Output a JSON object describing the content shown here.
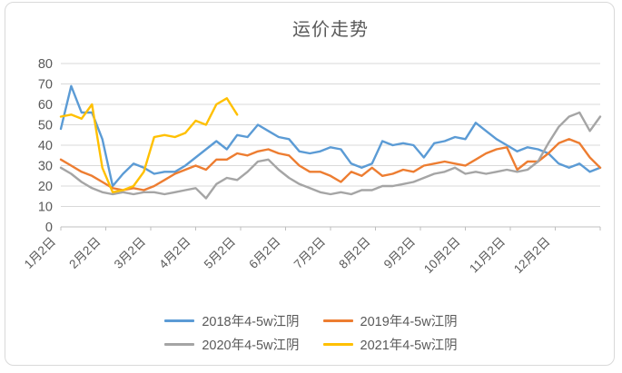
{
  "chart_title": "运价走势",
  "chart_data": {
    "type": "line",
    "title": "运价走势",
    "x_axis": {
      "tick_labels": [
        "1月2日",
        "2月2日",
        "3月2日",
        "4月2日",
        "5月2日",
        "6月2日",
        "7月2日",
        "8月2日",
        "9月2日",
        "10月2日",
        "11月2日",
        "12月2日"
      ],
      "label_rotation_deg": 45,
      "points_per_year": 53
    },
    "y_axis": {
      "min": 0,
      "max": 80,
      "step": 10,
      "tick_labels": [
        "0",
        "10",
        "20",
        "30",
        "40",
        "50",
        "60",
        "70",
        "80"
      ]
    },
    "grid": true,
    "legend_position": "bottom",
    "colors": {
      "grid": "#d9d9d9",
      "axis": "#bfbfbf",
      "text": "#595959"
    },
    "series": [
      {
        "name": "2018年4-5w江阴",
        "color": "#5b9bd5",
        "values": [
          48,
          69,
          56,
          56,
          43,
          20,
          26,
          31,
          29,
          26,
          27,
          27,
          30,
          34,
          38,
          42,
          38,
          45,
          44,
          50,
          47,
          44,
          43,
          37,
          36,
          37,
          39,
          38,
          31,
          29,
          31,
          42,
          40,
          41,
          40,
          34,
          41,
          42,
          44,
          43,
          51,
          47,
          43,
          40,
          37,
          39,
          38,
          36,
          31,
          29,
          31,
          27,
          29
        ]
      },
      {
        "name": "2019年4-5w江阴",
        "color": "#ed7d31",
        "values": [
          33,
          30,
          27,
          25,
          22,
          19,
          18,
          19,
          18,
          20,
          23,
          26,
          28,
          30,
          28,
          33,
          33,
          36,
          35,
          37,
          38,
          36,
          35,
          30,
          27,
          27,
          25,
          22,
          27,
          25,
          29,
          25,
          26,
          28,
          27,
          30,
          31,
          32,
          31,
          30,
          33,
          36,
          38,
          39,
          28,
          32,
          32,
          36,
          41,
          43,
          41,
          34,
          29
        ]
      },
      {
        "name": "2020年4-5w江阴",
        "color": "#a5a5a5",
        "values": [
          29,
          26,
          22,
          19,
          17,
          16,
          17,
          16,
          17,
          17,
          16,
          17,
          18,
          19,
          14,
          21,
          24,
          23,
          27,
          32,
          33,
          28,
          24,
          21,
          19,
          17,
          16,
          17,
          16,
          18,
          18,
          20,
          20,
          21,
          22,
          24,
          26,
          27,
          29,
          26,
          27,
          26,
          27,
          28,
          27,
          28,
          32,
          41,
          49,
          54,
          56,
          47,
          54
        ]
      },
      {
        "name": "2021年4-5w江阴",
        "color": "#ffc000",
        "values": [
          54,
          55,
          53,
          60,
          29,
          17,
          18,
          20,
          27,
          44,
          45,
          44,
          46,
          52,
          50,
          60,
          63,
          55
        ]
      }
    ]
  }
}
